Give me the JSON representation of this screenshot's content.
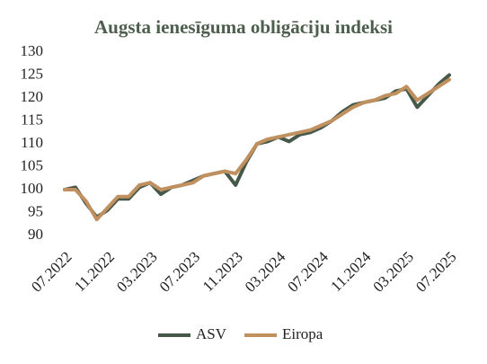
{
  "chart_data": {
    "type": "line",
    "title": "Augsta ienesīguma obligāciju indeksi",
    "categories": [
      "07.2022",
      null,
      null,
      null,
      "11.2022",
      null,
      null,
      null,
      "03.2023",
      null,
      null,
      null,
      "07.2023",
      null,
      null,
      null,
      "11.2023",
      null,
      null,
      null,
      "03.2024",
      null,
      null,
      null,
      "07.2024",
      null,
      null,
      null,
      "11.2024",
      null,
      null,
      null,
      "03.2025",
      null,
      null,
      null,
      "07.2025"
    ],
    "series": [
      {
        "name": "ASV",
        "color": "#46584a",
        "values": [
          100,
          100.5,
          97,
          94,
          95.5,
          98,
          98,
          100.5,
          101.5,
          99,
          100.5,
          101,
          102,
          103,
          103.5,
          104,
          101,
          106,
          110,
          110.5,
          111.5,
          110.5,
          112,
          112.5,
          113.5,
          115,
          117,
          118.5,
          119,
          119.5,
          120,
          121.5,
          122,
          118,
          120.5,
          123,
          125
        ]
      },
      {
        "name": "Eiropa",
        "color": "#c0915f",
        "values": [
          100,
          100,
          97.5,
          93.5,
          96,
          98.5,
          98.5,
          101,
          101.5,
          100,
          100.5,
          101,
          101.5,
          103,
          103.5,
          104,
          103.5,
          106.5,
          110,
          111,
          111.5,
          112,
          112.5,
          113,
          114,
          115,
          116.5,
          118,
          119,
          119.5,
          120.5,
          121,
          122.5,
          119.5,
          121,
          122.5,
          124
        ]
      }
    ],
    "ylim": [
      90,
      130
    ],
    "yticks": [
      90,
      95,
      100,
      105,
      110,
      115,
      120,
      125,
      130
    ],
    "grid": false,
    "legend": "bottom"
  }
}
